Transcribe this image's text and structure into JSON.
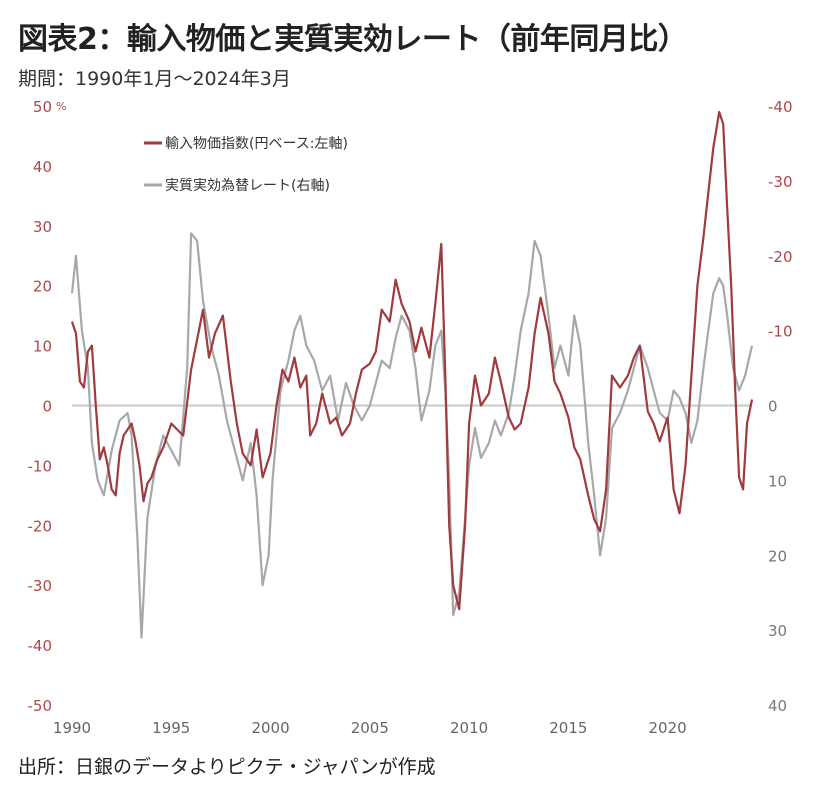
{
  "title": "図表2：輸入物価と実質実効レート（前年同月比）",
  "subtitle": "期間：1990年1月～2024年3月",
  "source": "出所：日銀のデータよりピクテ・ジャパンが作成",
  "colors": {
    "import": "#a03a3e",
    "reer": "#a8a8a8",
    "zero": "#c8c8c8"
  },
  "chart_data": {
    "type": "line",
    "left_axis": {
      "unit": "%",
      "range": [
        -50,
        50
      ],
      "ticks": [
        "50",
        "40",
        "30",
        "20",
        "10",
        "0",
        "-10",
        "-20",
        "-30",
        "-40",
        "-50"
      ]
    },
    "right_axis": {
      "inverted": true,
      "range": [
        -40,
        40
      ],
      "ticks": [
        "-40",
        "-30",
        "-20",
        "-10",
        "0",
        "10",
        "20",
        "30",
        "40"
      ]
    },
    "x_ticks": [
      "1990",
      "1995",
      "2000",
      "2005",
      "2010",
      "2015",
      "2020"
    ],
    "x_range": [
      1990,
      2024.25
    ],
    "legend": [
      "輸入物価指数(円ベース:左軸)",
      "実質実効為替レート(右軸)"
    ],
    "series": [
      {
        "name": "輸入物価指数(円ベース:左軸)",
        "axis": "left",
        "points": [
          [
            1990.0,
            14
          ],
          [
            1990.2,
            12
          ],
          [
            1990.4,
            4
          ],
          [
            1990.6,
            3
          ],
          [
            1990.8,
            9
          ],
          [
            1991.0,
            10
          ],
          [
            1991.2,
            0
          ],
          [
            1991.4,
            -9
          ],
          [
            1991.6,
            -7
          ],
          [
            1991.8,
            -10
          ],
          [
            1992.0,
            -14
          ],
          [
            1992.2,
            -15
          ],
          [
            1992.4,
            -8
          ],
          [
            1992.6,
            -5
          ],
          [
            1992.8,
            -4
          ],
          [
            1993.0,
            -3
          ],
          [
            1993.2,
            -6
          ],
          [
            1993.4,
            -10
          ],
          [
            1993.6,
            -16
          ],
          [
            1993.8,
            -13
          ],
          [
            1994.0,
            -12
          ],
          [
            1994.3,
            -9
          ],
          [
            1994.6,
            -7
          ],
          [
            1995.0,
            -3
          ],
          [
            1995.3,
            -4
          ],
          [
            1995.6,
            -5
          ],
          [
            1996.0,
            6
          ],
          [
            1996.3,
            11
          ],
          [
            1996.6,
            16
          ],
          [
            1996.9,
            8
          ],
          [
            1997.2,
            12
          ],
          [
            1997.6,
            15
          ],
          [
            1998.0,
            4
          ],
          [
            1998.3,
            -3
          ],
          [
            1998.6,
            -8
          ],
          [
            1999.0,
            -10
          ],
          [
            1999.3,
            -4
          ],
          [
            1999.6,
            -12
          ],
          [
            2000.0,
            -8
          ],
          [
            2000.3,
            0
          ],
          [
            2000.6,
            6
          ],
          [
            2000.9,
            4
          ],
          [
            2001.2,
            8
          ],
          [
            2001.5,
            3
          ],
          [
            2001.8,
            5
          ],
          [
            2002.0,
            -5
          ],
          [
            2002.3,
            -3
          ],
          [
            2002.6,
            2
          ],
          [
            2003.0,
            -3
          ],
          [
            2003.3,
            -2
          ],
          [
            2003.6,
            -5
          ],
          [
            2004.0,
            -3
          ],
          [
            2004.3,
            2
          ],
          [
            2004.6,
            6
          ],
          [
            2005.0,
            7
          ],
          [
            2005.3,
            9
          ],
          [
            2005.6,
            16
          ],
          [
            2006.0,
            14
          ],
          [
            2006.3,
            21
          ],
          [
            2006.6,
            17
          ],
          [
            2007.0,
            14
          ],
          [
            2007.3,
            9
          ],
          [
            2007.6,
            13
          ],
          [
            2008.0,
            8
          ],
          [
            2008.3,
            17
          ],
          [
            2008.6,
            27
          ],
          [
            2008.8,
            5
          ],
          [
            2009.0,
            -20
          ],
          [
            2009.2,
            -30
          ],
          [
            2009.5,
            -34
          ],
          [
            2009.8,
            -20
          ],
          [
            2010.0,
            -3
          ],
          [
            2010.3,
            5
          ],
          [
            2010.6,
            0
          ],
          [
            2011.0,
            2
          ],
          [
            2011.3,
            8
          ],
          [
            2011.6,
            4
          ],
          [
            2012.0,
            -2
          ],
          [
            2012.3,
            -4
          ],
          [
            2012.6,
            -3
          ],
          [
            2013.0,
            3
          ],
          [
            2013.3,
            12
          ],
          [
            2013.6,
            18
          ],
          [
            2014.0,
            12
          ],
          [
            2014.3,
            4
          ],
          [
            2014.6,
            2
          ],
          [
            2015.0,
            -2
          ],
          [
            2015.3,
            -7
          ],
          [
            2015.6,
            -9
          ],
          [
            2016.0,
            -15
          ],
          [
            2016.3,
            -19
          ],
          [
            2016.6,
            -21
          ],
          [
            2016.9,
            -14
          ],
          [
            2017.2,
            5
          ],
          [
            2017.6,
            3
          ],
          [
            2018.0,
            5
          ],
          [
            2018.3,
            8
          ],
          [
            2018.6,
            10
          ],
          [
            2019.0,
            -1
          ],
          [
            2019.3,
            -3
          ],
          [
            2019.6,
            -6
          ],
          [
            2020.0,
            -2
          ],
          [
            2020.3,
            -14
          ],
          [
            2020.6,
            -18
          ],
          [
            2020.9,
            -10
          ],
          [
            2021.2,
            5
          ],
          [
            2021.5,
            20
          ],
          [
            2021.8,
            28
          ],
          [
            2022.0,
            34
          ],
          [
            2022.3,
            43
          ],
          [
            2022.6,
            49
          ],
          [
            2022.8,
            47
          ],
          [
            2023.0,
            33
          ],
          [
            2023.2,
            20
          ],
          [
            2023.4,
            3
          ],
          [
            2023.6,
            -12
          ],
          [
            2023.8,
            -14
          ],
          [
            2024.0,
            -3
          ],
          [
            2024.25,
            1
          ]
        ]
      },
      {
        "name": "実質実効為替レート(右軸)",
        "axis": "right",
        "points": [
          [
            1990.0,
            -15
          ],
          [
            1990.2,
            -20
          ],
          [
            1990.5,
            -10
          ],
          [
            1990.8,
            -5
          ],
          [
            1991.0,
            5
          ],
          [
            1991.3,
            10
          ],
          [
            1991.6,
            12
          ],
          [
            1992.0,
            6
          ],
          [
            1992.4,
            2
          ],
          [
            1992.8,
            1
          ],
          [
            1993.0,
            4
          ],
          [
            1993.3,
            18
          ],
          [
            1993.5,
            31
          ],
          [
            1993.8,
            15
          ],
          [
            1994.2,
            8
          ],
          [
            1994.6,
            4
          ],
          [
            1995.0,
            6
          ],
          [
            1995.4,
            8
          ],
          [
            1995.8,
            -5
          ],
          [
            1996.0,
            -23
          ],
          [
            1996.3,
            -22
          ],
          [
            1996.6,
            -14
          ],
          [
            1997.0,
            -8
          ],
          [
            1997.4,
            -4
          ],
          [
            1997.8,
            2
          ],
          [
            1998.2,
            6
          ],
          [
            1998.6,
            10
          ],
          [
            1999.0,
            5
          ],
          [
            1999.3,
            12
          ],
          [
            1999.6,
            24
          ],
          [
            1999.9,
            20
          ],
          [
            2000.1,
            10
          ],
          [
            2000.5,
            -2
          ],
          [
            2000.9,
            -6
          ],
          [
            2001.2,
            -10
          ],
          [
            2001.5,
            -12
          ],
          [
            2001.8,
            -8
          ],
          [
            2002.2,
            -6
          ],
          [
            2002.6,
            -2
          ],
          [
            2003.0,
            -4
          ],
          [
            2003.4,
            2
          ],
          [
            2003.8,
            -3
          ],
          [
            2004.2,
            0
          ],
          [
            2004.6,
            2
          ],
          [
            2005.0,
            0
          ],
          [
            2005.3,
            -3
          ],
          [
            2005.6,
            -6
          ],
          [
            2006.0,
            -5
          ],
          [
            2006.3,
            -9
          ],
          [
            2006.6,
            -12
          ],
          [
            2007.0,
            -10
          ],
          [
            2007.3,
            -5
          ],
          [
            2007.6,
            2
          ],
          [
            2008.0,
            -2
          ],
          [
            2008.3,
            -8
          ],
          [
            2008.6,
            -10
          ],
          [
            2008.8,
            -2
          ],
          [
            2009.0,
            10
          ],
          [
            2009.2,
            28
          ],
          [
            2009.5,
            25
          ],
          [
            2009.8,
            15
          ],
          [
            2010.0,
            8
          ],
          [
            2010.3,
            3
          ],
          [
            2010.6,
            7
          ],
          [
            2011.0,
            5
          ],
          [
            2011.3,
            2
          ],
          [
            2011.6,
            4
          ],
          [
            2012.0,
            1
          ],
          [
            2012.3,
            -4
          ],
          [
            2012.6,
            -10
          ],
          [
            2013.0,
            -15
          ],
          [
            2013.3,
            -22
          ],
          [
            2013.6,
            -20
          ],
          [
            2014.0,
            -12
          ],
          [
            2014.3,
            -5
          ],
          [
            2014.6,
            -8
          ],
          [
            2015.0,
            -4
          ],
          [
            2015.3,
            -12
          ],
          [
            2015.6,
            -8
          ],
          [
            2016.0,
            5
          ],
          [
            2016.3,
            12
          ],
          [
            2016.6,
            20
          ],
          [
            2016.9,
            15
          ],
          [
            2017.2,
            3
          ],
          [
            2017.6,
            1
          ],
          [
            2018.0,
            -2
          ],
          [
            2018.3,
            -5
          ],
          [
            2018.6,
            -8
          ],
          [
            2019.0,
            -5
          ],
          [
            2019.3,
            -2
          ],
          [
            2019.6,
            1
          ],
          [
            2020.0,
            2
          ],
          [
            2020.3,
            -2
          ],
          [
            2020.6,
            -1
          ],
          [
            2020.9,
            1
          ],
          [
            2021.2,
            5
          ],
          [
            2021.5,
            2
          ],
          [
            2021.8,
            -5
          ],
          [
            2022.0,
            -9
          ],
          [
            2022.3,
            -15
          ],
          [
            2022.6,
            -17
          ],
          [
            2022.8,
            -16
          ],
          [
            2023.0,
            -12
          ],
          [
            2023.3,
            -5
          ],
          [
            2023.6,
            -2
          ],
          [
            2023.9,
            -4
          ],
          [
            2024.25,
            -8
          ]
        ]
      }
    ]
  }
}
